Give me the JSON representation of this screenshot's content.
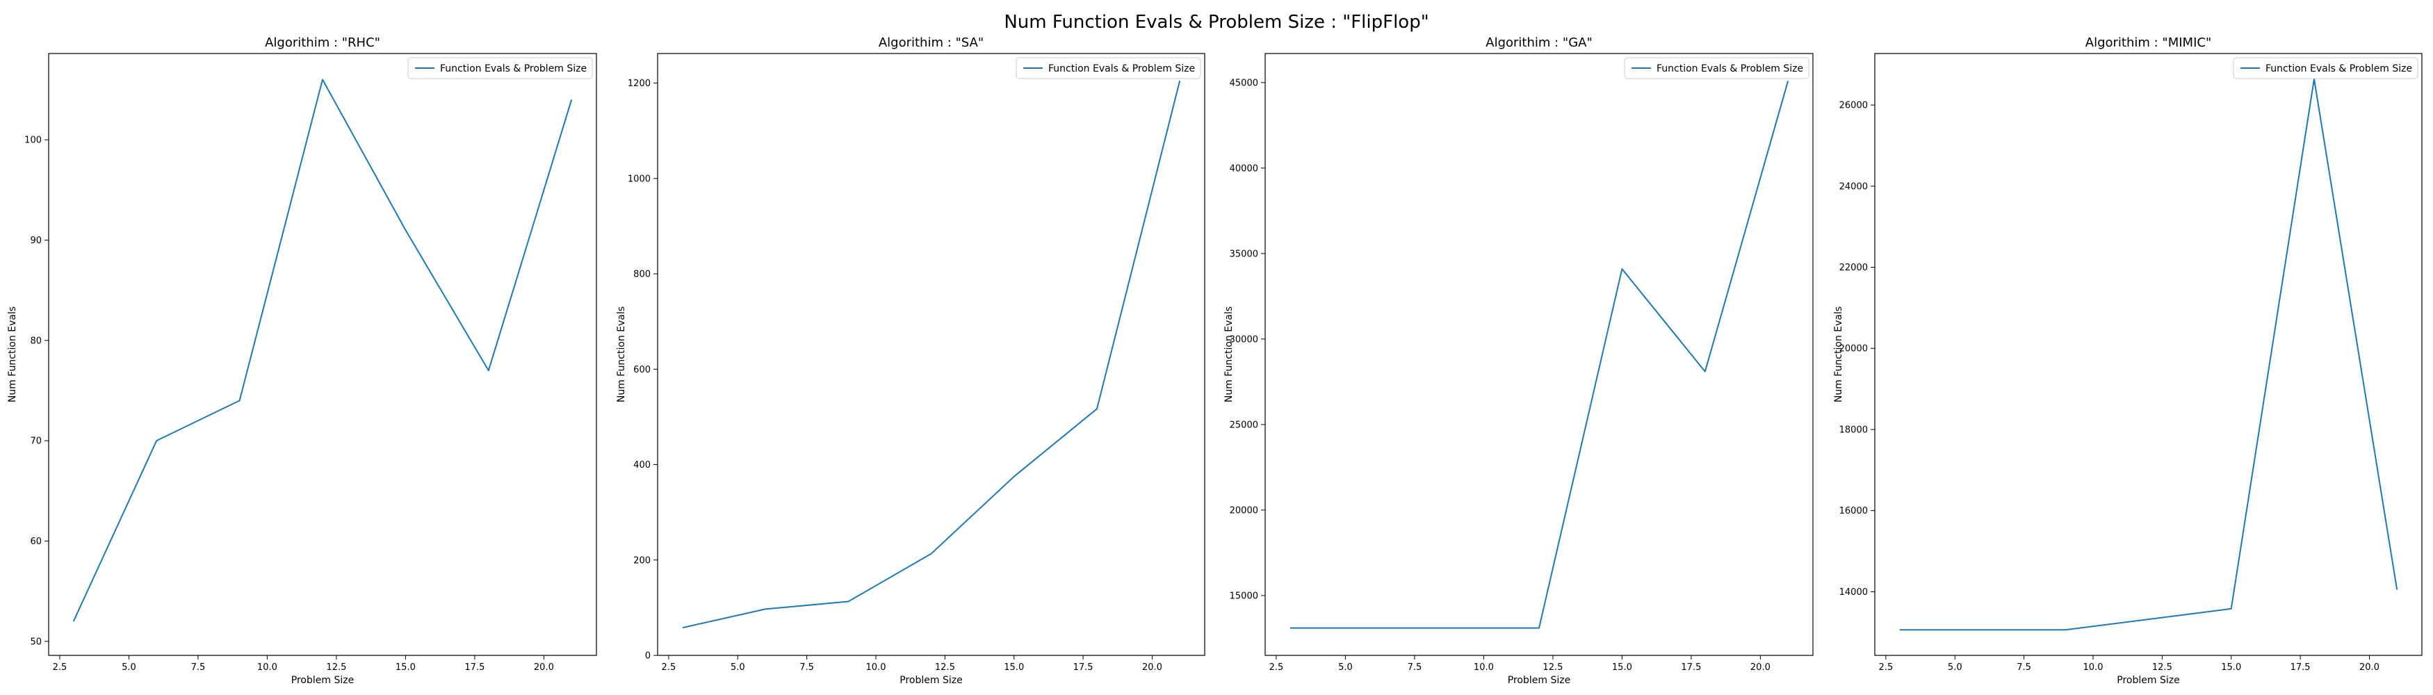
{
  "figure": {
    "title": "Num Function Evals & Problem Size : \"FlipFlop\""
  },
  "chart_data": [
    {
      "type": "line",
      "title": "Algorithim : \"RHC\"",
      "xlabel": "Problem Size",
      "ylabel": "Num Function Evals",
      "x": [
        3,
        6,
        9,
        12,
        15,
        18,
        21
      ],
      "series": [
        {
          "name": "Function Evals & Problem Size",
          "values": [
            52,
            70,
            74,
            106,
            91,
            77,
            104
          ]
        }
      ],
      "xlim": [
        2.1,
        21.9
      ],
      "ylim": [
        48.6,
        108.6
      ],
      "xticks": [
        2.5,
        5.0,
        7.5,
        10.0,
        12.5,
        15.0,
        17.5,
        20.0
      ],
      "xticklabels": [
        "2.5",
        "5.0",
        "7.5",
        "10.0",
        "12.5",
        "15.0",
        "17.5",
        "20.0"
      ],
      "yticks": [
        50,
        60,
        70,
        80,
        90,
        100
      ],
      "yticklabels": [
        "50",
        "60",
        "70",
        "80",
        "90",
        "100"
      ],
      "legend": "top-right",
      "grid": false,
      "color": "#1f77b4"
    },
    {
      "type": "line",
      "title": "Algorithim : \"SA\"",
      "xlabel": "Problem Size",
      "ylabel": "Num Function Evals",
      "x": [
        3,
        6,
        9,
        12,
        15,
        18,
        21
      ],
      "series": [
        {
          "name": "Function Evals & Problem Size",
          "values": [
            58,
            97,
            113,
            213,
            375,
            517,
            1205
          ]
        }
      ],
      "xlim": [
        2.1,
        21.9
      ],
      "ylim": [
        0,
        1262
      ],
      "xticks": [
        2.5,
        5.0,
        7.5,
        10.0,
        12.5,
        15.0,
        17.5,
        20.0
      ],
      "xticklabels": [
        "2.5",
        "5.0",
        "7.5",
        "10.0",
        "12.5",
        "15.0",
        "17.5",
        "20.0"
      ],
      "yticks": [
        0,
        200,
        400,
        600,
        800,
        1000,
        1200
      ],
      "yticklabels": [
        "0",
        "200",
        "400",
        "600",
        "800",
        "1000",
        "1200"
      ],
      "legend": "top-right",
      "grid": false,
      "color": "#1f77b4"
    },
    {
      "type": "line",
      "title": "Algorithim : \"GA\"",
      "xlabel": "Problem Size",
      "ylabel": "Num Function Evals",
      "x": [
        3,
        6,
        9,
        12,
        15,
        18,
        21
      ],
      "series": [
        {
          "name": "Function Evals & Problem Size",
          "values": [
            13100,
            13100,
            13100,
            13100,
            34100,
            28100,
            45100
          ]
        }
      ],
      "xlim": [
        2.1,
        21.9
      ],
      "ylim": [
        11500,
        46700
      ],
      "xticks": [
        2.5,
        5.0,
        7.5,
        10.0,
        12.5,
        15.0,
        17.5,
        20.0
      ],
      "xticklabels": [
        "2.5",
        "5.0",
        "7.5",
        "10.0",
        "12.5",
        "15.0",
        "17.5",
        "20.0"
      ],
      "yticks": [
        15000,
        20000,
        25000,
        30000,
        35000,
        40000,
        45000
      ],
      "yticklabels": [
        "15000",
        "20000",
        "25000",
        "30000",
        "35000",
        "40000",
        "45000"
      ],
      "legend": "top-right",
      "grid": false,
      "color": "#1f77b4"
    },
    {
      "type": "line",
      "title": "Algorithim : \"MIMIC\"",
      "xlabel": "Problem Size",
      "ylabel": "Num Function Evals",
      "x": [
        3,
        6,
        9,
        12,
        15,
        18,
        21
      ],
      "series": [
        {
          "name": "Function Evals & Problem Size",
          "values": [
            13060,
            13060,
            13060,
            13320,
            13580,
            26640,
            14050
          ]
        }
      ],
      "xlim": [
        2.1,
        21.9
      ],
      "ylim": [
        12430,
        27270
      ],
      "xticks": [
        2.5,
        5.0,
        7.5,
        10.0,
        12.5,
        15.0,
        17.5,
        20.0
      ],
      "xticklabels": [
        "2.5",
        "5.0",
        "7.5",
        "10.0",
        "12.5",
        "15.0",
        "17.5",
        "20.0"
      ],
      "yticks": [
        14000,
        16000,
        18000,
        20000,
        22000,
        24000,
        26000
      ],
      "yticklabels": [
        "14000",
        "16000",
        "18000",
        "20000",
        "22000",
        "24000",
        "26000"
      ],
      "legend": "top-right",
      "grid": false,
      "color": "#1f77b4"
    }
  ]
}
